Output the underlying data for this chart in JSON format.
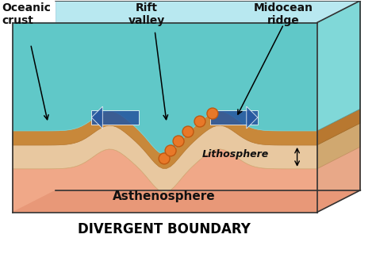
{
  "bg_color": "#ffffff",
  "title": "DIVERGENT BOUNDARY",
  "title_fontsize": 12,
  "title_fontweight": "bold",
  "labels": {
    "oceanic_crust": "Oceanic\ncrust",
    "rift_valley": "Rift\nvalley",
    "midocean_ridge": "Midocean\nridge",
    "lithosphere": "Lithosphere",
    "asthenosphere": "Asthenosphere"
  },
  "colors": {
    "water_top_back": "#b8e8f0",
    "water_top_face": "#60c8c8",
    "water_side": "#80d8d8",
    "water_deep": "#40a8b8",
    "ocean_floor_top": "#c8883a",
    "ocean_floor_mid": "#b87830",
    "ocean_floor_bot": "#a06820",
    "lith_top": "#e8c8a0",
    "lith_mid": "#d0a870",
    "lith_bot": "#c09060",
    "asth_top": "#f8c0a8",
    "asth_mid": "#f0a888",
    "asth_bot": "#e89878",
    "asth_side": "#e8a888",
    "magma_orange": "#e87828",
    "magma_edge": "#c05810",
    "arrow_blue": "#2858a0",
    "outline": "#333333",
    "label_black": "#111111"
  },
  "figsize": [
    4.74,
    3.34
  ],
  "dpi": 100
}
